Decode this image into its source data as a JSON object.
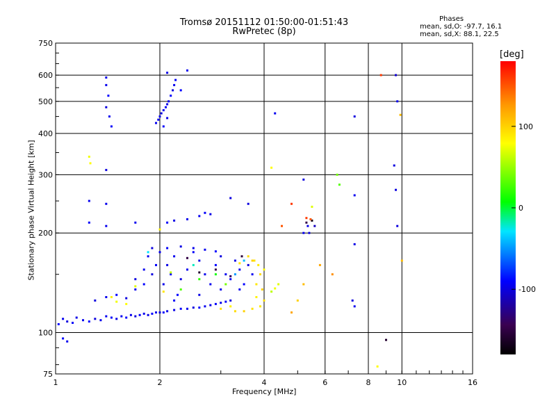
{
  "chart_data": {
    "type": "scatter",
    "title": "Tromsø 20151112 01:50:00-01:51:43",
    "subtitle": "RwPretec (8p)",
    "xlabel": "Frequency [MHz]",
    "ylabel": "Stationary phase Virtual Height [km]",
    "x_scale": "log",
    "y_scale": "log",
    "xlim": [
      1,
      16
    ],
    "ylim": [
      75,
      750
    ],
    "x_ticks": [
      1,
      2,
      4,
      6,
      8,
      10,
      16
    ],
    "y_ticks": [
      75,
      100,
      200,
      300,
      400,
      500,
      600,
      750
    ],
    "grid": true,
    "colorbar": {
      "label": "[deg]",
      "range": [
        -180,
        180
      ],
      "ticks": [
        100,
        0,
        -100
      ]
    },
    "info": {
      "heading": "Phases",
      "line_o": "mean, sd,O:  -97.7, 16.1",
      "line_x": "mean, sd,X:  88.1, 22.5"
    },
    "series": [
      {
        "name": "Phases",
        "points": [
          [
            1.02,
            106,
            -90
          ],
          [
            1.05,
            110,
            -95
          ],
          [
            1.08,
            108,
            -100
          ],
          [
            1.12,
            107,
            -92
          ],
          [
            1.15,
            111,
            -98
          ],
          [
            1.2,
            109,
            -95
          ],
          [
            1.25,
            108,
            -90
          ],
          [
            1.3,
            110,
            -100
          ],
          [
            1.35,
            109,
            -96
          ],
          [
            1.4,
            112,
            -94
          ],
          [
            1.45,
            111,
            -92
          ],
          [
            1.5,
            110,
            -98
          ],
          [
            1.55,
            112,
            -95
          ],
          [
            1.6,
            111,
            -90
          ],
          [
            1.65,
            113,
            -96
          ],
          [
            1.7,
            112,
            -100
          ],
          [
            1.75,
            113,
            -92
          ],
          [
            1.8,
            114,
            -95
          ],
          [
            1.85,
            113,
            -98
          ],
          [
            1.9,
            114,
            -90
          ],
          [
            1.95,
            115,
            -95
          ],
          [
            2.0,
            115,
            -100
          ],
          [
            2.05,
            115,
            -92
          ],
          [
            2.1,
            116,
            -96
          ],
          [
            2.2,
            117,
            -98
          ],
          [
            2.3,
            118,
            -92
          ],
          [
            2.4,
            118,
            -95
          ],
          [
            2.5,
            119,
            -100
          ],
          [
            2.6,
            119,
            -90
          ],
          [
            2.7,
            120,
            -95
          ],
          [
            2.8,
            121,
            -98
          ],
          [
            2.9,
            122,
            -92
          ],
          [
            3.0,
            123,
            -96
          ],
          [
            3.1,
            124,
            -92
          ],
          [
            3.2,
            125,
            -100
          ],
          [
            1.05,
            96,
            -90
          ],
          [
            1.08,
            94,
            -95
          ],
          [
            1.3,
            125,
            -100
          ],
          [
            1.4,
            128,
            -95
          ],
          [
            1.5,
            130,
            -90
          ],
          [
            1.6,
            127,
            -100
          ],
          [
            1.7,
            135,
            -95
          ],
          [
            1.8,
            140,
            -90
          ],
          [
            1.9,
            150,
            -100
          ],
          [
            1.85,
            170,
            -95
          ],
          [
            1.95,
            160,
            -92
          ],
          [
            1.9,
            180,
            -100
          ],
          [
            2.0,
            175,
            -95
          ],
          [
            2.1,
            160,
            -98
          ],
          [
            2.05,
            140,
            -96
          ],
          [
            2.15,
            150,
            -92
          ],
          [
            2.2,
            170,
            -95
          ],
          [
            2.25,
            130,
            -90
          ],
          [
            2.3,
            145,
            -100
          ],
          [
            2.4,
            155,
            -95
          ],
          [
            2.5,
            175,
            -92
          ],
          [
            2.6,
            165,
            -98
          ],
          [
            2.7,
            150,
            -96
          ],
          [
            2.8,
            140,
            -95
          ],
          [
            2.9,
            160,
            -90
          ],
          [
            3.0,
            170,
            -100
          ],
          [
            3.1,
            150,
            -95
          ],
          [
            3.2,
            145,
            -92
          ],
          [
            3.3,
            165,
            -98
          ],
          [
            3.4,
            155,
            -95
          ],
          [
            3.5,
            140,
            -90
          ],
          [
            3.6,
            160,
            -100
          ],
          [
            3.7,
            150,
            -95
          ],
          [
            2.1,
            180,
            -92
          ],
          [
            2.3,
            182,
            -98
          ],
          [
            2.5,
            180,
            -96
          ],
          [
            2.7,
            178,
            -95
          ],
          [
            2.9,
            176,
            -90
          ],
          [
            1.7,
            145,
            -100
          ],
          [
            1.8,
            155,
            -95
          ],
          [
            2.2,
            125,
            -92
          ],
          [
            2.6,
            130,
            -98
          ],
          [
            3.0,
            135,
            -96
          ],
          [
            3.4,
            135,
            -95
          ],
          [
            1.6,
            122,
            80
          ],
          [
            1.5,
            124,
            75
          ],
          [
            1.45,
            128,
            85
          ],
          [
            1.7,
            138,
            70
          ],
          [
            2.05,
            133,
            90
          ],
          [
            2.15,
            152,
            60
          ],
          [
            3.3,
            116,
            95
          ],
          [
            3.5,
            116,
            100
          ],
          [
            3.7,
            118,
            92
          ],
          [
            3.9,
            120,
            88
          ],
          [
            4.0,
            125,
            95
          ],
          [
            3.8,
            128,
            85
          ],
          [
            3.95,
            135,
            100
          ],
          [
            3.8,
            140,
            90
          ],
          [
            3.9,
            150,
            95
          ],
          [
            3.85,
            160,
            88
          ],
          [
            3.75,
            165,
            92
          ],
          [
            4.0,
            155,
            80
          ],
          [
            4.2,
            133,
            60
          ],
          [
            4.3,
            136,
            75
          ],
          [
            4.4,
            140,
            70
          ],
          [
            3.6,
            170,
            95
          ],
          [
            3.7,
            165,
            100
          ],
          [
            3.4,
            162,
            90
          ],
          [
            3.2,
            120,
            85
          ],
          [
            3.0,
            118,
            92
          ],
          [
            2.3,
            135,
            30
          ],
          [
            2.6,
            145,
            20
          ],
          [
            2.9,
            150,
            10
          ],
          [
            3.1,
            140,
            40
          ],
          [
            1.85,
            175,
            -30
          ],
          [
            2.5,
            160,
            -20
          ],
          [
            3.5,
            165,
            -40
          ],
          [
            3.3,
            150,
            -50
          ],
          [
            2.6,
            152,
            -160
          ],
          [
            2.9,
            155,
            -150
          ],
          [
            3.2,
            148,
            -140
          ],
          [
            3.45,
            170,
            -155
          ],
          [
            2.4,
            168,
            -150
          ],
          [
            1.4,
            560,
            -95
          ],
          [
            1.42,
            520,
            -90
          ],
          [
            1.4,
            480,
            -100
          ],
          [
            1.43,
            450,
            -95
          ],
          [
            1.45,
            420,
            -92
          ],
          [
            1.4,
            590,
            -96
          ],
          [
            1.95,
            430,
            -95
          ],
          [
            1.98,
            440,
            -92
          ],
          [
            2.02,
            460,
            -100
          ],
          [
            2.05,
            470,
            -96
          ],
          [
            2.08,
            480,
            -92
          ],
          [
            2.1,
            490,
            -98
          ],
          [
            2.12,
            500,
            -95
          ],
          [
            2.15,
            520,
            -90
          ],
          [
            2.18,
            540,
            -100
          ],
          [
            2.2,
            560,
            -95
          ],
          [
            2.22,
            580,
            -92
          ],
          [
            2.1,
            610,
            -98
          ],
          [
            2.3,
            540,
            -90
          ],
          [
            2.4,
            620,
            -95
          ],
          [
            2.0,
            450,
            -96
          ],
          [
            2.05,
            420,
            -92
          ],
          [
            2.1,
            445,
            -98
          ],
          [
            1.7,
            215,
            -95
          ],
          [
            2.1,
            215,
            -92
          ],
          [
            2.2,
            218,
            -98
          ],
          [
            2.4,
            220,
            -96
          ],
          [
            2.6,
            225,
            -95
          ],
          [
            2.7,
            230,
            -92
          ],
          [
            2.8,
            228,
            -98
          ],
          [
            1.25,
            250,
            -95
          ],
          [
            1.4,
            245,
            -96
          ],
          [
            1.25,
            215,
            -92
          ],
          [
            1.4,
            210,
            -95
          ],
          [
            1.4,
            310,
            -100
          ],
          [
            1.25,
            340,
            75
          ],
          [
            1.26,
            325,
            80
          ],
          [
            2.0,
            205,
            85
          ],
          [
            4.2,
            315,
            80
          ],
          [
            5.5,
            240,
            70
          ],
          [
            6.5,
            300,
            40
          ],
          [
            6.6,
            280,
            30
          ],
          [
            5.3,
            215,
            -150
          ],
          [
            5.5,
            218,
            -170
          ],
          [
            5.4,
            200,
            -100
          ],
          [
            5.6,
            210,
            -110
          ],
          [
            5.2,
            200,
            -95
          ],
          [
            5.35,
            210,
            -98
          ],
          [
            5.45,
            220,
            150
          ],
          [
            5.3,
            222,
            160
          ],
          [
            4.3,
            460,
            -95
          ],
          [
            7.3,
            450,
            -100
          ],
          [
            9.7,
            500,
            -96
          ],
          [
            9.6,
            600,
            -105
          ],
          [
            9.5,
            320,
            -100
          ],
          [
            9.6,
            270,
            -100
          ],
          [
            9.7,
            210,
            -100
          ],
          [
            7.3,
            260,
            -95
          ],
          [
            7.3,
            185,
            -98
          ],
          [
            5.2,
            290,
            -100
          ],
          [
            9.0,
            95,
            -160
          ],
          [
            8.5,
            79,
            80
          ],
          [
            8.7,
            600,
            160
          ],
          [
            4.8,
            245,
            160
          ],
          [
            4.5,
            210,
            150
          ],
          [
            7.2,
            125,
            -100
          ],
          [
            7.3,
            120,
            -95
          ],
          [
            9.9,
            455,
            110
          ],
          [
            10.0,
            165,
            110
          ],
          [
            4.8,
            115,
            120
          ],
          [
            5.0,
            125,
            100
          ],
          [
            5.2,
            140,
            110
          ],
          [
            5.8,
            160,
            120
          ],
          [
            6.3,
            150,
            130
          ],
          [
            3.2,
            255,
            -100
          ],
          [
            3.6,
            245,
            -100
          ]
        ]
      }
    ]
  }
}
